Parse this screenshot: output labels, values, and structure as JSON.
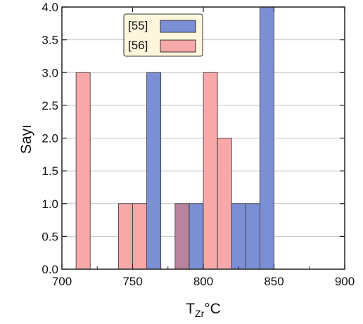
{
  "chart_data": {
    "type": "bar",
    "title": "",
    "xlabel": "T",
    "xlabel_subscript": "Zr",
    "xlabel_unit": "°C",
    "ylabel": "Sayı",
    "xlim": [
      700,
      900
    ],
    "ylim": [
      0,
      4.0
    ],
    "xticks": [
      "700",
      "750",
      "800",
      "850",
      "900"
    ],
    "yticks": [
      "0.0",
      "0.5",
      "1.0",
      "1.5",
      "2.0",
      "2.5",
      "3.0",
      "3.5",
      "4.0"
    ],
    "grid": "horizontal",
    "legend_position": "top-center",
    "bin_width": 10,
    "series": [
      {
        "name": "[55]",
        "color": "#7b8fd4",
        "bars": [
          {
            "x0": 760,
            "x1": 770,
            "value": 3
          },
          {
            "x0": 790,
            "x1": 800,
            "value": 1
          },
          {
            "x0": 820,
            "x1": 830,
            "value": 1
          },
          {
            "x0": 830,
            "x1": 840,
            "value": 1
          },
          {
            "x0": 840,
            "x1": 850,
            "value": 4
          }
        ]
      },
      {
        "name": "[56]",
        "color": "#f7a8a8",
        "bars": [
          {
            "x0": 710,
            "x1": 720,
            "value": 3
          },
          {
            "x0": 740,
            "x1": 750,
            "value": 1
          },
          {
            "x0": 750,
            "x1": 760,
            "value": 1
          },
          {
            "x0": 800,
            "x1": 810,
            "value": 3
          },
          {
            "x0": 810,
            "x1": 820,
            "value": 2
          }
        ]
      },
      {
        "name": "",
        "color": "#b7849c",
        "bars": [
          {
            "x0": 780,
            "x1": 790,
            "value": 1
          }
        ]
      }
    ]
  }
}
